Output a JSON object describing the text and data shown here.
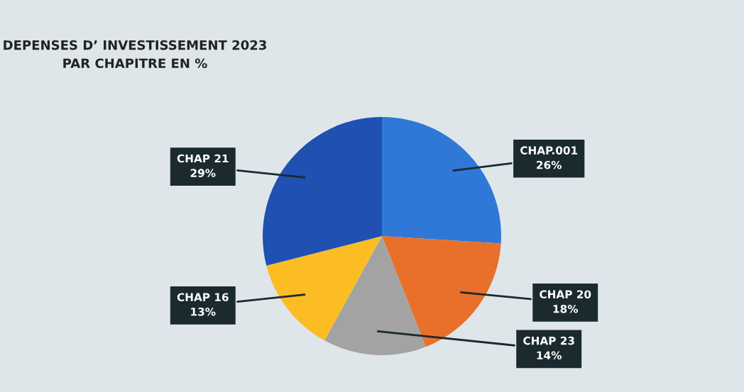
{
  "chart_data": {
    "type": "pie",
    "title": "DEPENSES D’ INVESTISSEMENT 2023\nPAR CHAPITRE EN %",
    "categories": [
      "CHAP.001",
      "CHAP 20",
      "CHAP 23",
      "CHAP 16",
      "CHAP 21"
    ],
    "values": [
      26,
      18,
      14,
      13,
      29
    ],
    "value_labels": [
      "26%",
      "18%",
      "14%",
      "13%",
      "29%"
    ],
    "colors": [
      "#2f78d8",
      "#e8702a",
      "#a3a3a3",
      "#fbbd23",
      "#1f50b2"
    ]
  }
}
